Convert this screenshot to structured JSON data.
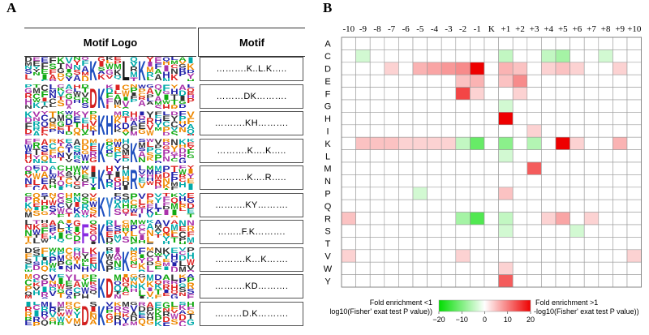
{
  "panel_a": {
    "label": "A",
    "header_logo": "Motif Logo",
    "header_motif": "Motif",
    "rows": [
      {
        "motif": "……….K..L.K…..",
        "big": [
          {
            "p": 8,
            "c": "K"
          },
          {
            "p": 12,
            "c": "L"
          },
          {
            "p": 14,
            "c": "K"
          }
        ]
      },
      {
        "motif": "………DK……….",
        "big": [
          {
            "p": 8,
            "c": "D"
          },
          {
            "p": 9,
            "c": "K"
          }
        ]
      },
      {
        "motif": "……….KH……….",
        "big": [
          {
            "p": 9,
            "c": "K"
          },
          {
            "p": 10,
            "c": "H"
          }
        ]
      },
      {
        "motif": "……….K….K…..",
        "big": [
          {
            "p": 9,
            "c": "K"
          },
          {
            "p": 13,
            "c": "K"
          }
        ]
      },
      {
        "motif": "……….K….R…..",
        "big": [
          {
            "p": 9,
            "c": "K"
          },
          {
            "p": 13,
            "c": "R"
          }
        ]
      },
      {
        "motif": "……….KY……….",
        "big": [
          {
            "p": 9,
            "c": "K"
          },
          {
            "p": 10,
            "c": "Y"
          }
        ]
      },
      {
        "motif": "……..F.K……….",
        "big": [
          {
            "p": 7,
            "c": "F"
          },
          {
            "p": 9,
            "c": "K"
          }
        ]
      },
      {
        "motif": "……….K…K…….",
        "big": [
          {
            "p": 9,
            "c": "K"
          },
          {
            "p": 12,
            "c": "K"
          }
        ]
      },
      {
        "motif": "……….KD……….",
        "big": [
          {
            "p": 9,
            "c": "K"
          },
          {
            "p": 10,
            "c": "D"
          }
        ]
      },
      {
        "motif": "………D.K……….",
        "big": [
          {
            "p": 7,
            "c": "D"
          },
          {
            "p": 9,
            "c": "K"
          }
        ]
      }
    ]
  },
  "panel_b": {
    "label": "B",
    "columns": [
      "-10",
      "-9",
      "-8",
      "-7",
      "-6",
      "-5",
      "-4",
      "-3",
      "-2",
      "-1",
      "K",
      "+1",
      "+2",
      "+3",
      "+4",
      "+5",
      "+6",
      "+7",
      "+8",
      "+9",
      "+10"
    ],
    "rows": [
      "A",
      "C",
      "D",
      "E",
      "F",
      "G",
      "H",
      "I",
      "K",
      "L",
      "M",
      "N",
      "P",
      "Q",
      "R",
      "S",
      "T",
      "V",
      "W",
      "Y"
    ],
    "values": [
      [
        0,
        0,
        0,
        0,
        0,
        0,
        0,
        0,
        0,
        0,
        0,
        0,
        0,
        0,
        0,
        0,
        0,
        0,
        0,
        0,
        0
      ],
      [
        0,
        -2,
        0,
        0,
        0,
        0,
        0,
        0,
        0,
        0,
        0,
        -3,
        0,
        0,
        -3,
        -5,
        0,
        0,
        -2,
        0,
        0
      ],
      [
        0,
        0,
        0,
        2,
        0,
        4,
        5,
        6,
        7,
        20,
        0,
        4,
        3,
        0,
        2,
        3,
        2,
        0,
        0,
        2,
        0
      ],
      [
        0,
        0,
        0,
        0,
        0,
        0,
        0,
        0,
        3,
        4,
        0,
        3,
        7,
        0,
        0,
        0,
        0,
        0,
        0,
        0,
        0
      ],
      [
        0,
        0,
        0,
        0,
        0,
        0,
        0,
        0,
        13,
        2,
        0,
        0,
        2,
        0,
        0,
        0,
        0,
        0,
        0,
        0,
        0
      ],
      [
        0,
        0,
        0,
        0,
        0,
        0,
        0,
        0,
        0,
        0,
        0,
        -2,
        0,
        0,
        0,
        0,
        0,
        0,
        0,
        0,
        0
      ],
      [
        0,
        0,
        0,
        0,
        0,
        0,
        0,
        0,
        0,
        0,
        0,
        20,
        0,
        0,
        0,
        0,
        0,
        0,
        0,
        0,
        0
      ],
      [
        0,
        0,
        0,
        0,
        0,
        0,
        0,
        0,
        0,
        0,
        0,
        0,
        0,
        2,
        0,
        0,
        0,
        0,
        0,
        0,
        0
      ],
      [
        0,
        3,
        3,
        3,
        2,
        2,
        2,
        2,
        -3,
        -10,
        0,
        -7,
        0,
        -4,
        0,
        20,
        2,
        0,
        0,
        4,
        0
      ],
      [
        0,
        0,
        0,
        0,
        0,
        0,
        0,
        0,
        0,
        0,
        0,
        -2,
        0,
        0,
        0,
        0,
        0,
        0,
        0,
        0,
        0
      ],
      [
        0,
        0,
        0,
        0,
        0,
        0,
        0,
        0,
        0,
        0,
        0,
        0,
        0,
        11,
        0,
        0,
        0,
        0,
        0,
        0,
        0
      ],
      [
        0,
        0,
        0,
        0,
        0,
        0,
        0,
        0,
        0,
        0,
        0,
        0,
        0,
        0,
        0,
        0,
        0,
        0,
        0,
        0,
        0
      ],
      [
        0,
        0,
        0,
        0,
        0,
        -2,
        0,
        0,
        0,
        0,
        0,
        3,
        0,
        0,
        0,
        0,
        0,
        0,
        0,
        0,
        0
      ],
      [
        0,
        0,
        0,
        0,
        0,
        0,
        0,
        0,
        0,
        0,
        0,
        0,
        0,
        0,
        0,
        0,
        0,
        0,
        0,
        0,
        0
      ],
      [
        3,
        0,
        0,
        0,
        0,
        0,
        0,
        0,
        -5,
        -12,
        0,
        -3,
        0,
        0,
        2,
        5,
        0,
        2,
        0,
        0,
        0
      ],
      [
        0,
        0,
        0,
        0,
        0,
        0,
        0,
        0,
        0,
        0,
        0,
        -2,
        0,
        0,
        0,
        0,
        -2,
        0,
        0,
        0,
        0
      ],
      [
        0,
        0,
        0,
        0,
        0,
        0,
        0,
        0,
        0,
        0,
        0,
        0,
        0,
        0,
        0,
        0,
        0,
        0,
        0,
        0,
        0
      ],
      [
        2,
        0,
        0,
        0,
        0,
        0,
        0,
        0,
        2,
        0,
        0,
        0,
        0,
        0,
        0,
        0,
        0,
        0,
        0,
        0,
        2
      ],
      [
        0,
        0,
        0,
        0,
        0,
        0,
        0,
        0,
        0,
        0,
        0,
        2,
        0,
        0,
        0,
        0,
        0,
        0,
        0,
        0,
        0
      ],
      [
        0,
        0,
        0,
        0,
        0,
        0,
        0,
        0,
        0,
        0,
        0,
        11,
        0,
        0,
        0,
        0,
        0,
        0,
        0,
        0,
        0
      ]
    ],
    "legend": {
      "left_line1": "Fold enrichment <1",
      "left_line2": "log10(Fisher' exat test P value))",
      "right_line1": "Fold enrichment >1",
      "right_line2": "-log10(Fisher' exat test P value))",
      "ticks": [
        "−20",
        "−10",
        "0",
        "10",
        "20"
      ],
      "range": [
        -20,
        20
      ],
      "color_neg": "#00dd00",
      "color_pos": "#ee0000"
    }
  }
}
